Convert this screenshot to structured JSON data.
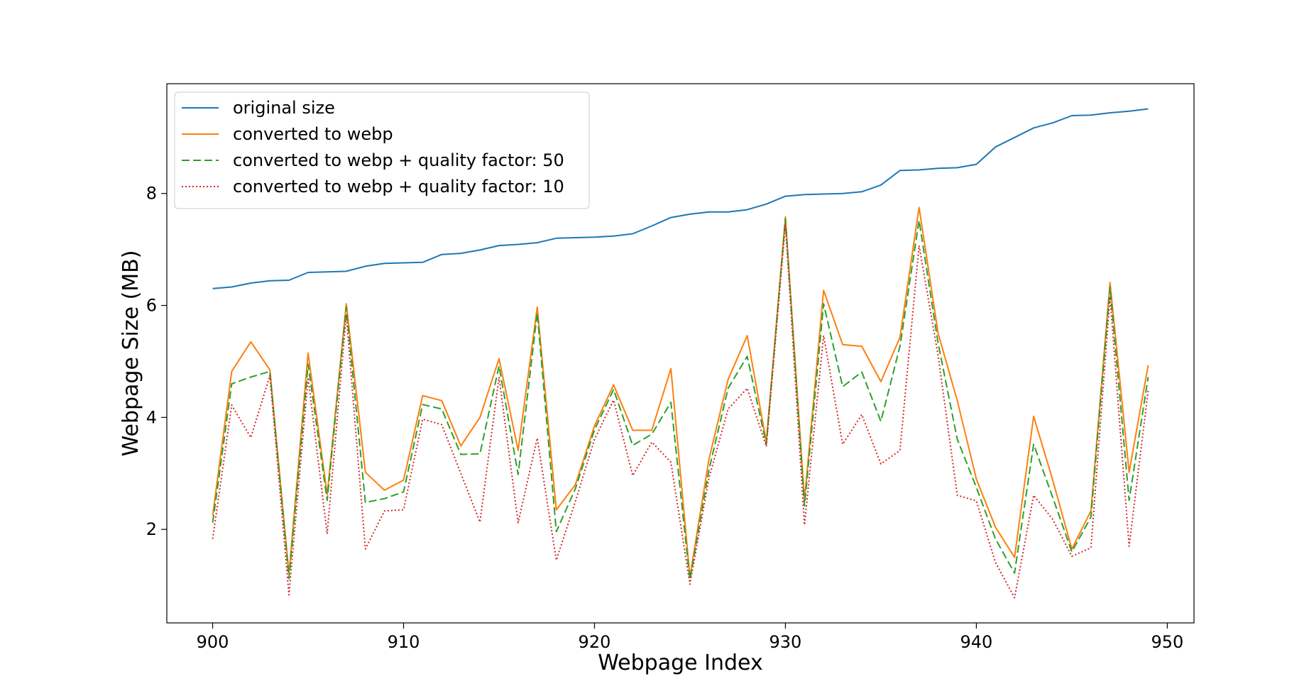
{
  "chart_data": {
    "type": "line",
    "title": "",
    "xlabel": "Webpage Index",
    "ylabel": "Webpage Size (MB)",
    "xlim": [
      897.6,
      951.4
    ],
    "ylim": [
      0.33,
      9.96
    ],
    "xticks": [
      900,
      910,
      920,
      930,
      940,
      950
    ],
    "yticks": [
      2,
      4,
      6,
      8
    ],
    "grid": false,
    "legend": "top-left",
    "x": [
      900,
      901,
      902,
      903,
      904,
      905,
      906,
      907,
      908,
      909,
      910,
      911,
      912,
      913,
      914,
      915,
      916,
      917,
      918,
      919,
      920,
      921,
      922,
      923,
      924,
      925,
      926,
      927,
      928,
      929,
      930,
      931,
      932,
      933,
      934,
      935,
      936,
      937,
      938,
      939,
      940,
      941,
      942,
      943,
      944,
      945,
      946,
      947,
      948,
      949
    ],
    "series": [
      {
        "name": "original size",
        "color": "#1f77b4",
        "style": "solid",
        "values": [
          6.3,
          6.33,
          6.4,
          6.44,
          6.45,
          6.59,
          6.6,
          6.61,
          6.7,
          6.75,
          6.76,
          6.77,
          6.91,
          6.93,
          6.99,
          7.07,
          7.09,
          7.12,
          7.2,
          7.21,
          7.22,
          7.24,
          7.28,
          7.42,
          7.57,
          7.63,
          7.67,
          7.67,
          7.71,
          7.81,
          7.95,
          7.98,
          7.99,
          8.0,
          8.03,
          8.15,
          8.41,
          8.42,
          8.45,
          8.46,
          8.52,
          8.83,
          9.0,
          9.17,
          9.26,
          9.39,
          9.4,
          9.44,
          9.47,
          9.51
        ]
      },
      {
        "name": "converted to webp",
        "color": "#ff7f0e",
        "style": "solid",
        "values": [
          2.25,
          4.82,
          5.35,
          4.85,
          1.2,
          5.15,
          2.62,
          6.03,
          3.02,
          2.7,
          2.88,
          4.39,
          4.3,
          3.49,
          4.0,
          5.05,
          3.41,
          5.97,
          2.35,
          2.8,
          3.85,
          4.58,
          3.77,
          3.77,
          4.87,
          1.15,
          3.26,
          4.68,
          5.46,
          3.56,
          7.58,
          2.52,
          6.27,
          5.3,
          5.27,
          4.64,
          5.43,
          7.75,
          5.5,
          4.3,
          2.9,
          2.04,
          1.5,
          4.02,
          2.88,
          1.65,
          2.33,
          6.41,
          3.02,
          4.93
        ]
      },
      {
        "name": "converted to webp + quality factor: 50",
        "color": "#2ca02c",
        "style": "dashed",
        "values": [
          2.12,
          4.6,
          4.72,
          4.82,
          1.12,
          4.95,
          2.52,
          5.97,
          2.48,
          2.55,
          2.67,
          4.23,
          4.15,
          3.34,
          3.35,
          4.92,
          2.98,
          5.87,
          1.96,
          2.73,
          3.78,
          4.5,
          3.5,
          3.7,
          4.27,
          1.1,
          3.07,
          4.52,
          5.09,
          3.52,
          7.55,
          2.42,
          6.03,
          4.55,
          4.81,
          3.93,
          5.27,
          7.52,
          5.32,
          3.61,
          2.75,
          1.83,
          1.22,
          3.52,
          2.57,
          1.6,
          2.22,
          6.33,
          2.52,
          4.72
        ]
      },
      {
        "name": "converted to webp + quality factor: 10",
        "color": "#d62728",
        "style": "dotted",
        "values": [
          1.83,
          4.22,
          3.64,
          4.75,
          0.83,
          4.71,
          1.92,
          5.83,
          1.65,
          2.33,
          2.35,
          3.97,
          3.87,
          3.0,
          2.13,
          4.72,
          2.12,
          3.63,
          1.45,
          2.5,
          3.61,
          4.31,
          2.96,
          3.56,
          3.2,
          1.02,
          2.92,
          4.15,
          4.52,
          3.48,
          7.45,
          2.08,
          5.46,
          3.52,
          4.05,
          3.17,
          3.41,
          7.07,
          5.1,
          2.61,
          2.51,
          1.41,
          0.78,
          2.61,
          2.18,
          1.52,
          1.67,
          6.15,
          1.7,
          4.48
        ]
      }
    ]
  }
}
